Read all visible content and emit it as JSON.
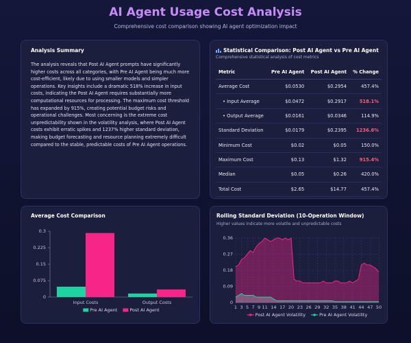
{
  "header": {
    "title": "AI Agent Usage Cost Analysis",
    "subtitle": "Comprehensive cost comparison showing AI agent optimization impact"
  },
  "summary": {
    "title": "Analysis Summary",
    "text": "The analysis reveals that Post AI Agent prompts have significantly higher costs across all categories, with Pre AI Agent being much more cost-efficient, likely due to using smaller models and simpler operations. Key insights include a dramatic 518% increase in input costs, indicating the Post AI Agent requires substantially more computational resources for processing. The maximum cost threshold has expanded by 915%, creating potential budget risks and operational challenges. Most concerning is the extreme cost unpredictability shown in the volatility analysis, where Post AI Agent costs exhibit erratic spikes and 1237% higher standard deviation, making budget forecasting and resource planning extremely difficult compared to the stable, predictable costs of Pre AI Agent operations."
  },
  "table": {
    "title": "Statistical Comparison: Post AI Agent vs Pre AI Agent",
    "subtitle": "Comprehensive statistical analysis of cost metrics",
    "columns": [
      "Metric",
      "Pre AI Agent",
      "Post AI Agent",
      "% Change"
    ],
    "rows": [
      [
        "Average Cost",
        "$0.0530",
        "$0.2954",
        "457.4%"
      ],
      [
        "• Input Average",
        "$0.0472",
        "$0.2917",
        "518.1%"
      ],
      [
        "• Output Average",
        "$0.0161",
        "$0.0346",
        "114.9%"
      ],
      [
        "Standard Deviation",
        "$0.0179",
        "$0.2395",
        "1236.6%"
      ],
      [
        "Minimum Cost",
        "$0.02",
        "$0.05",
        "150.0%"
      ],
      [
        "Maximum Cost",
        "$0.13",
        "$1.32",
        "915.4%"
      ],
      [
        "Median",
        "$0.05",
        "$0.26",
        "420.0%"
      ],
      [
        "Total Cost",
        "$2.65",
        "$14.77",
        "457.4%"
      ]
    ]
  },
  "chart_data": [
    {
      "type": "bar",
      "title": "Average Cost Comparison",
      "categories": [
        "Input Costs",
        "Output Costs"
      ],
      "series": [
        {
          "name": "Pre AI Agent",
          "color": "#1ed3a0",
          "values": [
            0.0472,
            0.0161
          ]
        },
        {
          "name": "Post AI Agent",
          "color": "#f72585",
          "values": [
            0.2917,
            0.0346
          ]
        }
      ],
      "ylim": [
        0,
        0.3
      ],
      "yticks": [
        0,
        0.075,
        0.15,
        0.225,
        0.3
      ],
      "grid": false
    },
    {
      "type": "line",
      "title": "Rolling Standard Deviation (10-Operation Window)",
      "subtitle": "Higher values indicate more volatile and unpredictable costs",
      "x": [
        1,
        2,
        3,
        4,
        5,
        6,
        7,
        8,
        9,
        10,
        11,
        12,
        13,
        14,
        15,
        16,
        17,
        18,
        19,
        20,
        21,
        22,
        23,
        24,
        25,
        26,
        27,
        28,
        29,
        30,
        31,
        32,
        33,
        34,
        35,
        36,
        37,
        38,
        39,
        40,
        41,
        42,
        43,
        44,
        45,
        46,
        47,
        48,
        49,
        50
      ],
      "series": [
        {
          "name": "Post AI Agent Volatility",
          "color": "#f72585",
          "values": [
            0.2,
            0.21,
            0.24,
            0.25,
            0.27,
            0.29,
            0.28,
            0.31,
            0.33,
            0.34,
            0.36,
            0.35,
            0.34,
            0.35,
            0.36,
            0.36,
            0.35,
            0.36,
            0.35,
            0.36,
            0.13,
            0.12,
            0.12,
            0.11,
            0.11,
            0.11,
            0.11,
            0.11,
            0.11,
            0.11,
            0.12,
            0.11,
            0.11,
            0.11,
            0.12,
            0.12,
            0.11,
            0.11,
            0.11,
            0.12,
            0.11,
            0.12,
            0.13,
            0.21,
            0.22,
            0.21,
            0.21,
            0.2,
            0.19,
            0.17
          ]
        },
        {
          "name": "Pre AI Agent Volatility",
          "color": "#1ed3a0",
          "values": [
            0.03,
            0.04,
            0.05,
            0.04,
            0.04,
            0.04,
            0.04,
            0.03,
            0.03,
            0.03,
            0.03,
            0.03,
            0.03,
            0.02,
            0.01,
            0.01,
            0.01,
            0.01,
            0.01,
            0.01,
            0.01,
            0.01,
            0.01,
            0.01,
            0.01,
            0.01,
            0.01,
            0.01,
            0.01,
            0.01,
            0.01,
            0.01,
            0.01,
            0.01,
            0.005,
            0.005,
            0.005,
            0.005,
            0.005,
            0.005,
            0.005,
            0.005,
            0.005,
            0.005,
            0.005,
            0.005,
            0.005,
            0.005,
            0.005,
            0.005
          ]
        }
      ],
      "xlim": [
        1,
        50
      ],
      "xticks": [
        1,
        3,
        5,
        7,
        9,
        11,
        14,
        17,
        20,
        23,
        26,
        29,
        32,
        35,
        38,
        41,
        44,
        47,
        50
      ],
      "ylim": [
        0,
        0.36
      ],
      "yticks": [
        0,
        0.09,
        0.18,
        0.27,
        0.36
      ],
      "grid": true
    }
  ]
}
